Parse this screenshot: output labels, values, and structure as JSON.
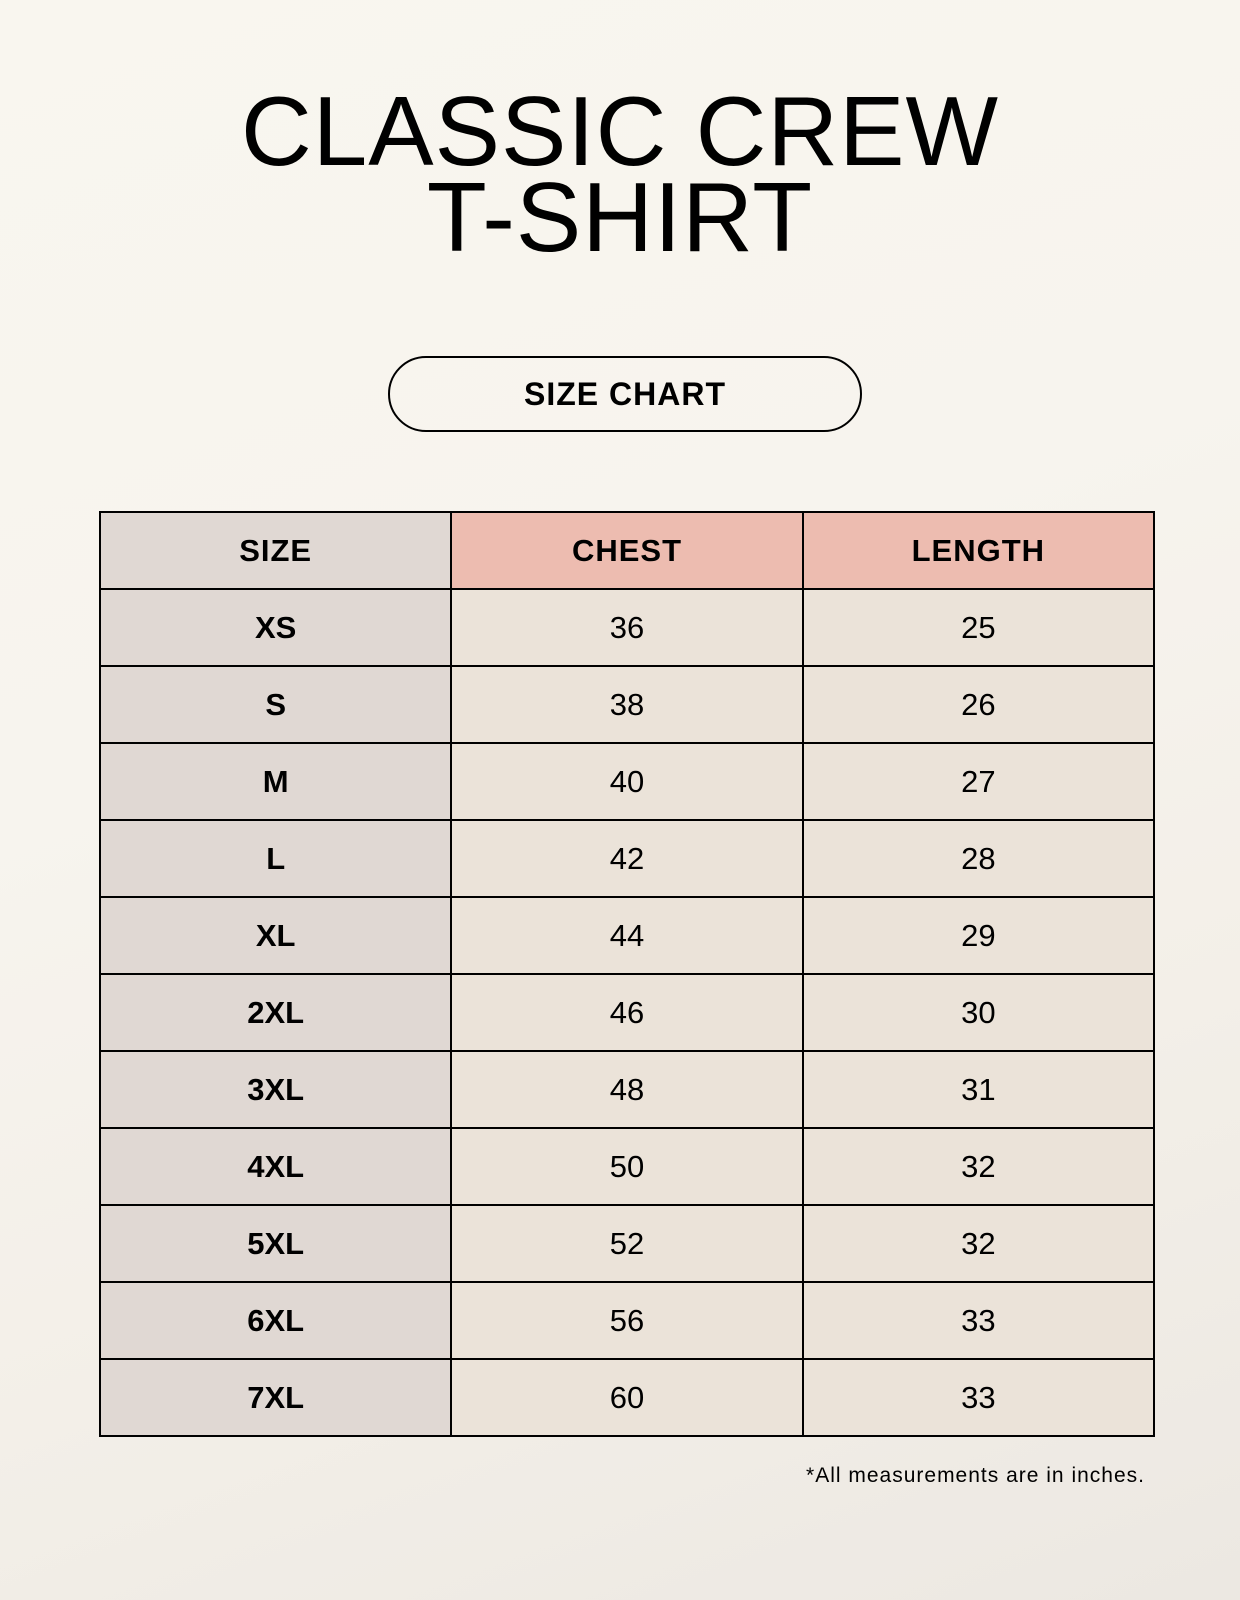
{
  "title_lines": [
    "CLASSIC CREW",
    "T-SHIRT"
  ],
  "badge": "SIZE CHART",
  "table": {
    "headers": [
      "SIZE",
      "CHEST",
      "LENGTH"
    ],
    "rows": [
      [
        "XS",
        "36",
        "25"
      ],
      [
        "S",
        "38",
        "26"
      ],
      [
        "M",
        "40",
        "27"
      ],
      [
        "L",
        "42",
        "28"
      ],
      [
        "XL",
        "44",
        "29"
      ],
      [
        "2XL",
        "46",
        "30"
      ],
      [
        "3XL",
        "48",
        "31"
      ],
      [
        "4XL",
        "50",
        "32"
      ],
      [
        "5XL",
        "52",
        "32"
      ],
      [
        "6XL",
        "56",
        "33"
      ],
      [
        "7XL",
        "60",
        "33"
      ]
    ]
  },
  "footnote": "*All measurements are in inches.",
  "colors": {
    "size_column": "#e0d8d3",
    "header_accent": "#edbcb0",
    "value_cells": "#ebe3d9"
  }
}
